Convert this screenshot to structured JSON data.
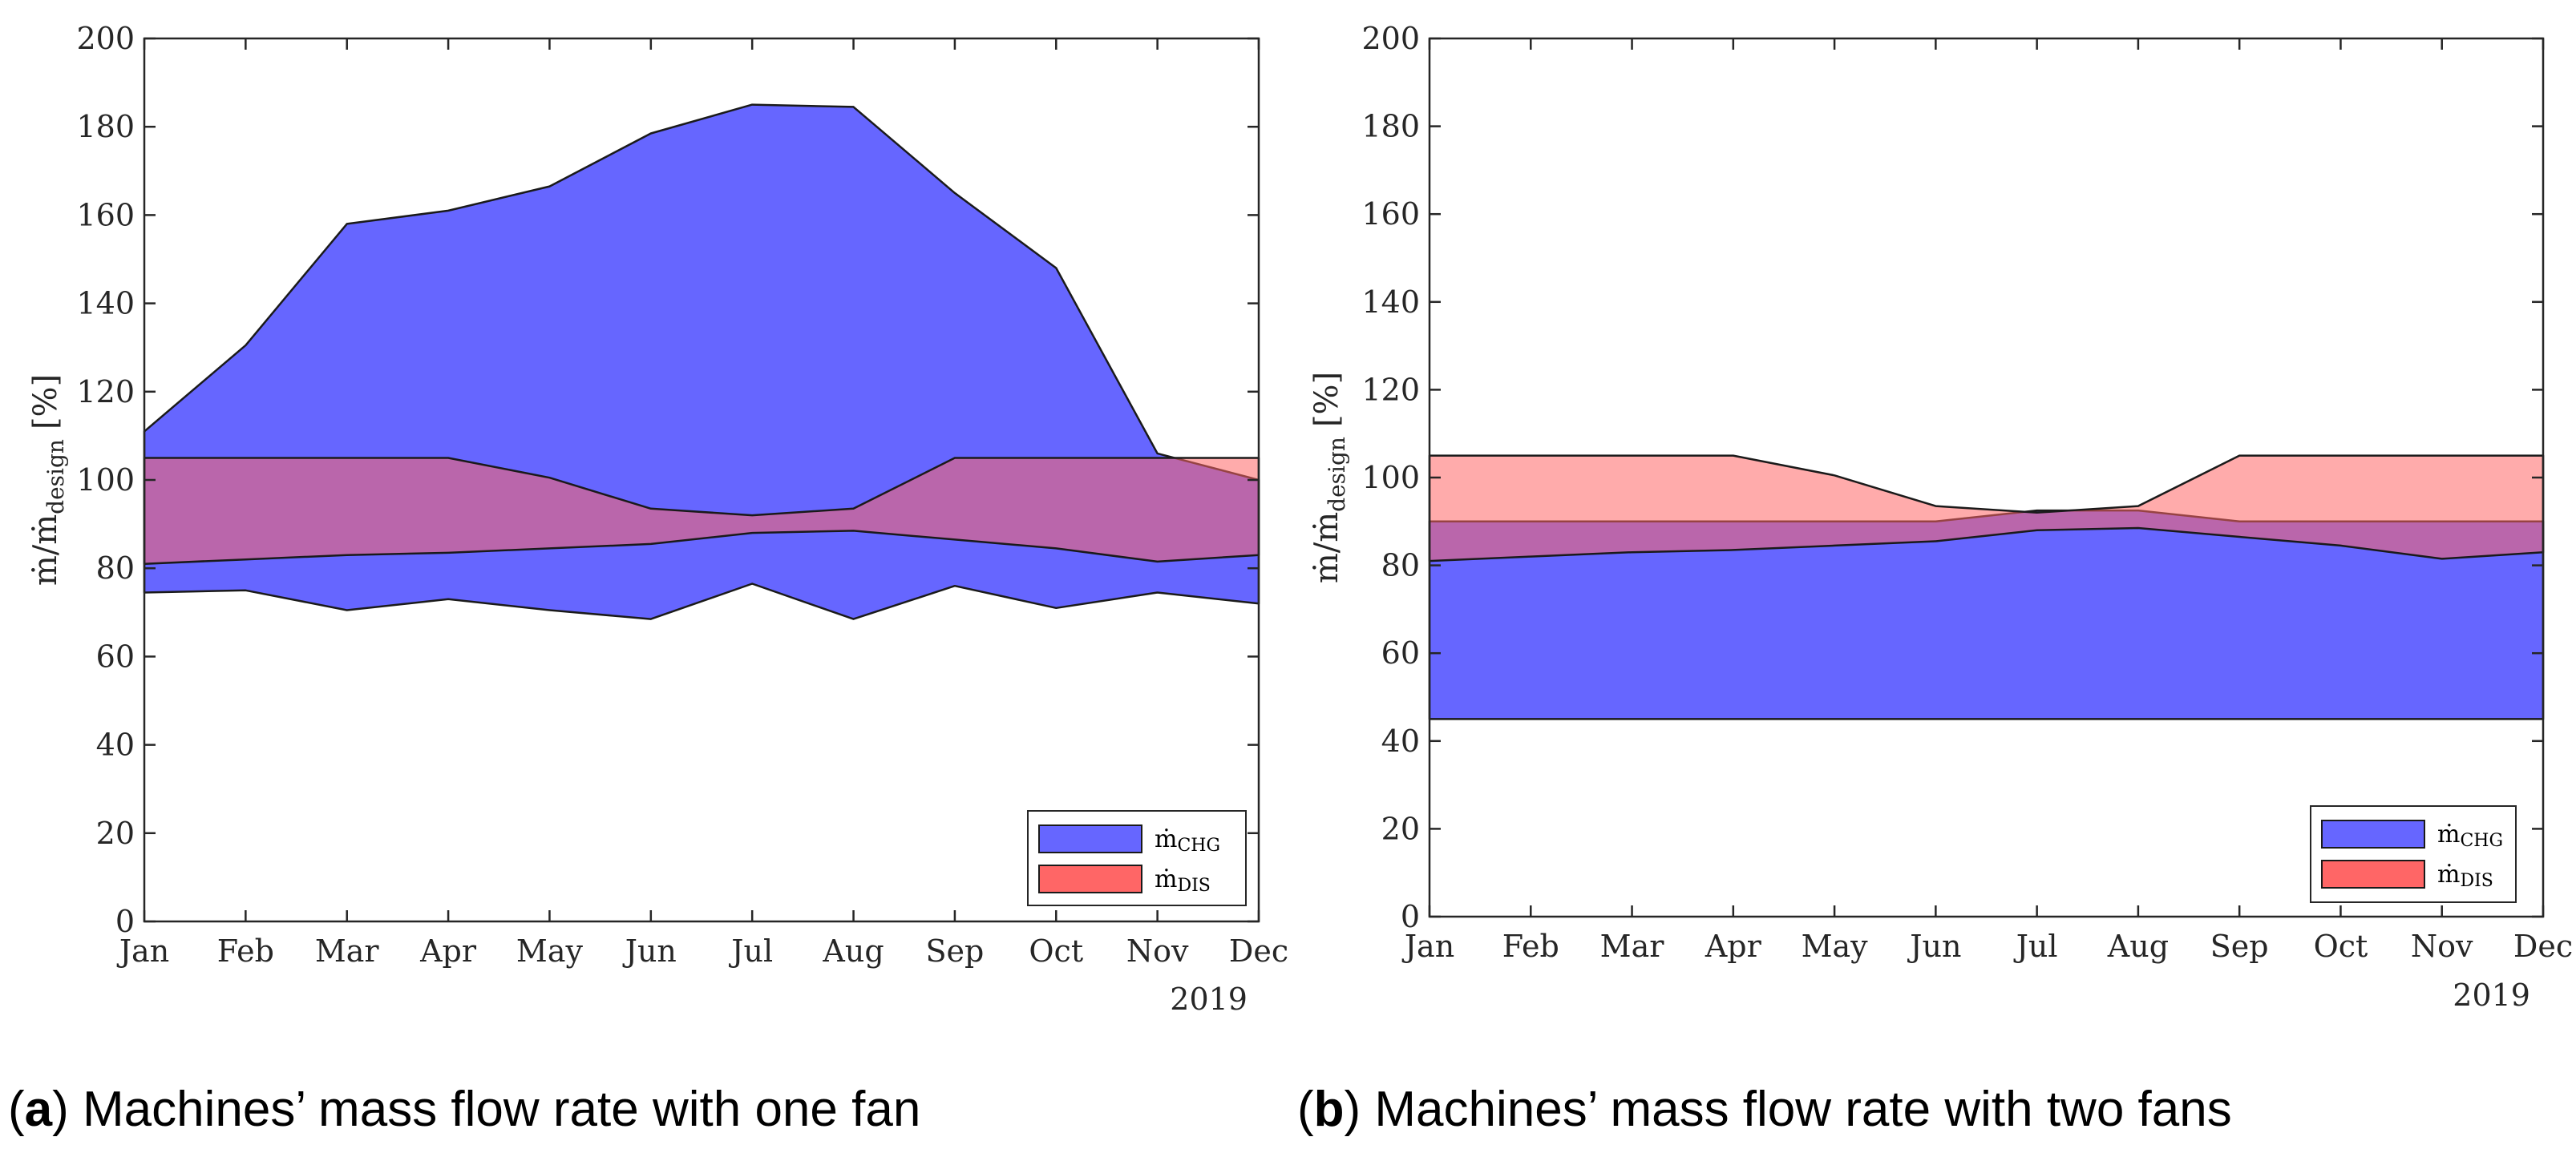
{
  "chart_data": [
    {
      "type": "area",
      "caption_letter": "a",
      "caption_text": "Machines’ mass flow rate with one fan",
      "x": [
        "Jan",
        "Feb",
        "Mar",
        "Apr",
        "May",
        "Jun",
        "Jul",
        "Aug",
        "Sep",
        "Oct",
        "Nov",
        "Dec"
      ],
      "year_label": "2019",
      "ylabel": "ṁ/ṁ",
      "ylabel_sub": "design",
      "ylabel_unit": "[%]",
      "ylim": [
        0,
        200
      ],
      "yticks": [
        "0",
        "20",
        "40",
        "60",
        "80",
        "100",
        "120",
        "140",
        "160",
        "180",
        "200"
      ],
      "grid": false,
      "legend_position": "bottom-right",
      "series": [
        {
          "name": "ṁ",
          "name_sub": "CHG",
          "color": "#6666ff",
          "lower": [
            74.5,
            75,
            70.5,
            73,
            70.5,
            68.5,
            76.5,
            68.5,
            76,
            71,
            74.5,
            72
          ],
          "upper": [
            111,
            130.5,
            158,
            161,
            166.5,
            178.5,
            185,
            184.5,
            165,
            148,
            106,
            100
          ]
        },
        {
          "name": "ṁ",
          "name_sub": "DIS",
          "color": "#ff6666",
          "lower": [
            81,
            82,
            83,
            83.5,
            84.5,
            85.5,
            88,
            88.5,
            86.5,
            84.5,
            81.5,
            83
          ],
          "upper": [
            105,
            105,
            105,
            105,
            100.5,
            93.5,
            92,
            93.5,
            105,
            105,
            105,
            105
          ]
        }
      ]
    },
    {
      "type": "area",
      "caption_letter": "b",
      "caption_text": "Machines’ mass flow rate with two fans",
      "x": [
        "Jan",
        "Feb",
        "Mar",
        "Apr",
        "May",
        "Jun",
        "Jul",
        "Aug",
        "Sep",
        "Oct",
        "Nov",
        "Dec"
      ],
      "year_label": "2019",
      "ylabel": "ṁ/ṁ",
      "ylabel_sub": "design",
      "ylabel_unit": "[%]",
      "ylim": [
        0,
        200
      ],
      "yticks": [
        "0",
        "20",
        "40",
        "60",
        "80",
        "100",
        "120",
        "140",
        "160",
        "180",
        "200"
      ],
      "grid": false,
      "legend_position": "bottom-right",
      "series": [
        {
          "name": "ṁ",
          "name_sub": "CHG",
          "color": "#6666ff",
          "lower": [
            45,
            45,
            45,
            45,
            45,
            45,
            45,
            45,
            45,
            45,
            45,
            45
          ],
          "upper": [
            90,
            90,
            90,
            90,
            90,
            90,
            92.5,
            92.5,
            90,
            90,
            90,
            90
          ]
        },
        {
          "name": "ṁ",
          "name_sub": "DIS",
          "color": "#ff6666",
          "lower": [
            81,
            82,
            83,
            83.5,
            84.5,
            85.5,
            88,
            88.5,
            86.5,
            84.5,
            81.5,
            83
          ],
          "upper": [
            105,
            105,
            105,
            105,
            100.5,
            93.5,
            92,
            93.5,
            105,
            105,
            105,
            105
          ]
        }
      ]
    }
  ]
}
